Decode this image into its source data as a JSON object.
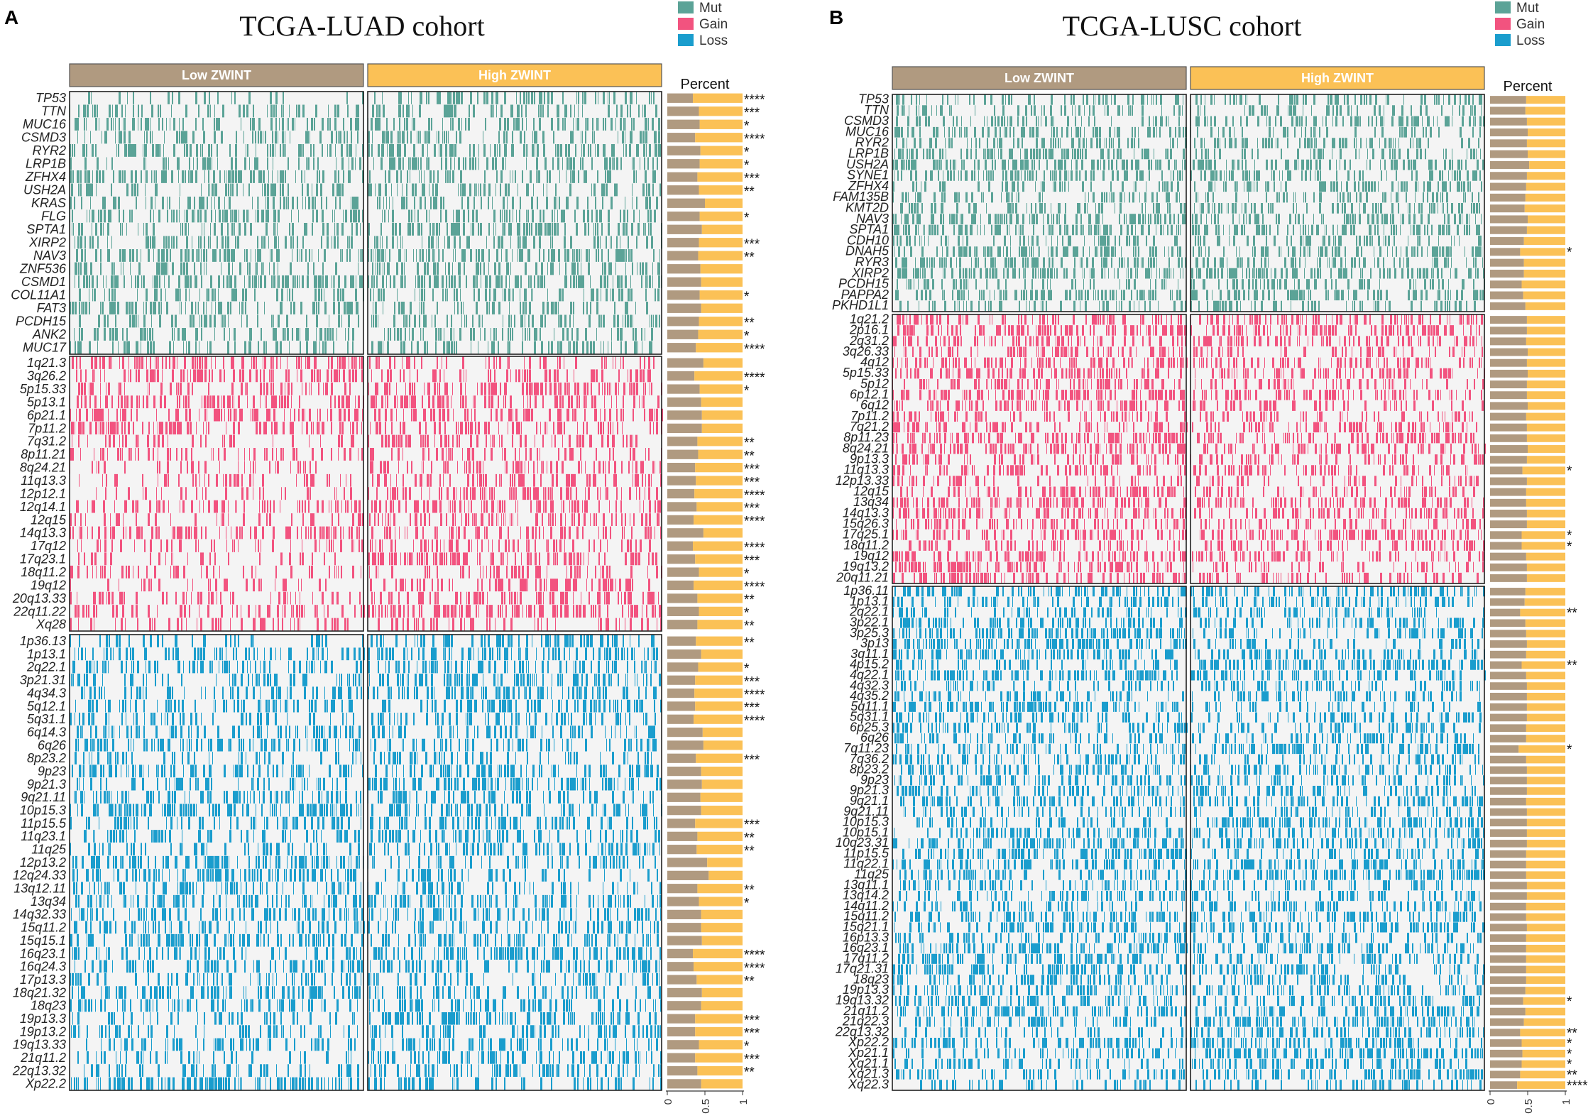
{
  "colors": {
    "mut": "#5ba397",
    "gain": "#f2537f",
    "loss": "#1a9dcd",
    "low": "#b09a80",
    "high": "#fbc156",
    "bg": "#f4f4f4"
  },
  "legend": {
    "items": [
      {
        "key": "mut",
        "label": "Mut"
      },
      {
        "key": "gain",
        "label": "Gain"
      },
      {
        "key": "loss",
        "label": "Loss"
      }
    ]
  },
  "axis": {
    "title": "Percent",
    "ticks": [
      "0",
      "0.5",
      "1"
    ]
  },
  "groups": {
    "low": "Low ZWINT",
    "high": "High ZWINT"
  },
  "chart_data": [
    {
      "type": "heatmap",
      "panel_label": "A",
      "title": "TCGA-LUAD cohort",
      "x_groups": [
        "Low ZWINT",
        "High ZWINT"
      ],
      "percent_axis": {
        "label": "Percent",
        "range": [
          0,
          1
        ]
      },
      "blocks": [
        {
          "type": "mut",
          "rows": [
            "TP53",
            "TTN",
            "MUC16",
            "CSMD3",
            "RYR2",
            "LRP1B",
            "ZFHX4",
            "USH2A",
            "KRAS",
            "FLG",
            "SPTA1",
            "XIRP2",
            "NAV3",
            "ZNF536",
            "CSMD1",
            "COL11A1",
            "FAT3",
            "PCDH15",
            "ANK2",
            "MUC17"
          ],
          "sig": [
            "****",
            "***",
            "*",
            "****",
            "*",
            "*",
            "***",
            "**",
            "",
            "*",
            "",
            "***",
            "**",
            "",
            "",
            "*",
            "",
            "**",
            "*",
            "****"
          ],
          "low_fraction": [
            0.34,
            0.42,
            0.43,
            0.37,
            0.44,
            0.43,
            0.4,
            0.42,
            0.5,
            0.43,
            0.46,
            0.42,
            0.41,
            0.44,
            0.45,
            0.43,
            0.45,
            0.42,
            0.41,
            0.38
          ]
        },
        {
          "type": "gain",
          "rows": [
            "1q21.3",
            "3q26.2",
            "5p15.33",
            "5p13.1",
            "6p21.1",
            "7p11.2",
            "7q31.2",
            "8p11.21",
            "8q24.21",
            "11q13.3",
            "12p12.1",
            "12q14.1",
            "12q15",
            "14q13.3",
            "17q12",
            "17q23.1",
            "18q11.2",
            "19q12",
            "20q13.33",
            "22q11.22",
            "Xq28"
          ],
          "sig": [
            "",
            "****",
            "*",
            "",
            "",
            "",
            "**",
            "**",
            "***",
            "***",
            "****",
            "***",
            "****",
            "",
            "****",
            "***",
            "*",
            "****",
            "**",
            "*",
            "**"
          ],
          "low_fraction": [
            0.48,
            0.36,
            0.43,
            0.45,
            0.46,
            0.46,
            0.4,
            0.41,
            0.37,
            0.38,
            0.36,
            0.39,
            0.35,
            0.48,
            0.34,
            0.37,
            0.42,
            0.35,
            0.4,
            0.42,
            0.4
          ]
        },
        {
          "type": "loss",
          "rows": [
            "1p36.13",
            "1p13.1",
            "2q22.1",
            "3p21.31",
            "4q34.3",
            "5q12.1",
            "5q31.1",
            "6q14.3",
            "6q26",
            "8p23.2",
            "9p23",
            "9p21.3",
            "9q21.11",
            "10p15.3",
            "11p15.5",
            "11q23.1",
            "11q25",
            "12p13.2",
            "12q24.33",
            "13q12.11",
            "13q34",
            "14q32.33",
            "15q11.2",
            "15q15.1",
            "16q23.1",
            "16q24.3",
            "17p13.3",
            "18q21.32",
            "18q23",
            "19p13.3",
            "19p13.2",
            "19q13.33",
            "21q11.2",
            "22q13.32",
            "Xp22.2"
          ],
          "sig": [
            "**",
            "",
            "*",
            "***",
            "****",
            "***",
            "****",
            "",
            "",
            "***",
            "",
            "",
            "",
            "",
            "***",
            "**",
            "**",
            "",
            "",
            "**",
            "*",
            "",
            "",
            "",
            "****",
            "****",
            "**",
            "",
            "",
            "***",
            "***",
            "*",
            "***",
            "**",
            ""
          ],
          "low_fraction": [
            0.38,
            0.45,
            0.41,
            0.37,
            0.36,
            0.37,
            0.35,
            0.47,
            0.48,
            0.38,
            0.45,
            0.46,
            0.44,
            0.45,
            0.37,
            0.4,
            0.39,
            0.53,
            0.55,
            0.4,
            0.42,
            0.45,
            0.45,
            0.46,
            0.34,
            0.35,
            0.39,
            0.46,
            0.45,
            0.37,
            0.37,
            0.42,
            0.37,
            0.4,
            0.45
          ]
        }
      ]
    },
    {
      "type": "heatmap",
      "panel_label": "B",
      "title": "TCGA-LUSC cohort",
      "x_groups": [
        "Low ZWINT",
        "High ZWINT"
      ],
      "percent_axis": {
        "label": "Percent",
        "range": [
          0,
          1
        ]
      },
      "blocks": [
        {
          "type": "mut",
          "rows": [
            "TP53",
            "TTN",
            "CSMD3",
            "MUC16",
            "RYR2",
            "LRP1B",
            "USH2A",
            "SYNE1",
            "ZFHX4",
            "FAM135B",
            "KMT2D",
            "NAV3",
            "SPTA1",
            "CDH10",
            "DNAH5",
            "RYR3",
            "XIRP2",
            "PCDH15",
            "PAPPA2",
            "PKHD1L1"
          ],
          "sig": [
            "",
            "",
            "",
            "",
            "",
            "",
            "",
            "",
            "",
            "",
            "",
            "",
            "",
            "",
            "*",
            "",
            "",
            "",
            "",
            ""
          ],
          "low_fraction": [
            0.48,
            0.47,
            0.49,
            0.5,
            0.49,
            0.5,
            0.52,
            0.49,
            0.48,
            0.47,
            0.46,
            0.5,
            0.49,
            0.45,
            0.4,
            0.45,
            0.45,
            0.42,
            0.44,
            0.47
          ]
        },
        {
          "type": "gain",
          "rows": [
            "1q21.2",
            "2p16.1",
            "2q31.2",
            "3q26.33",
            "4q12",
            "5p15.33",
            "5p12",
            "6p12.1",
            "6q12",
            "7p11.2",
            "7q21.2",
            "8p11.23",
            "8q24.21",
            "9p13.3",
            "11q13.3",
            "12p13.33",
            "12q15",
            "13q34",
            "14q13.3",
            "15q26.3",
            "17q25.1",
            "18q11.2",
            "19q12",
            "19q13.2",
            "20q11.21"
          ],
          "sig": [
            "",
            "",
            "",
            "",
            "",
            "",
            "",
            "",
            "",
            "",
            "",
            "",
            "",
            "",
            "*",
            "",
            "",
            "",
            "",
            "",
            "*",
            "*",
            "",
            "",
            ""
          ],
          "low_fraction": [
            0.49,
            0.49,
            0.48,
            0.5,
            0.49,
            0.5,
            0.49,
            0.49,
            0.5,
            0.48,
            0.49,
            0.49,
            0.5,
            0.49,
            0.43,
            0.49,
            0.48,
            0.48,
            0.49,
            0.49,
            0.42,
            0.42,
            0.48,
            0.49,
            0.49
          ]
        },
        {
          "type": "loss",
          "rows": [
            "1p36.11",
            "1p13.1",
            "2q22.1",
            "3p22.1",
            "3p25.3",
            "3p13",
            "3q11.1",
            "4p15.2",
            "4q22.1",
            "4q32.3",
            "4q35.2",
            "5q11.1",
            "5q31.1",
            "6p25.3",
            "6q26",
            "7q11.23",
            "7q36.2",
            "8p23.2",
            "9p23",
            "9p21.3",
            "9q21.1",
            "9q21.11",
            "10p15.3",
            "10p15.1",
            "10q23.31",
            "11p15.5",
            "11q22.1",
            "11q25",
            "13q11.1",
            "13q14.2",
            "14q11.2",
            "15q11.2",
            "15q21.1",
            "16p13.3",
            "16q23.1",
            "17q11.2",
            "17q21.31",
            "18q23",
            "19p13.3",
            "19q13.32",
            "21q11.2",
            "21q22.3",
            "22q13.32",
            "Xp22.2",
            "Xp21.1",
            "Xq21.1",
            "Xq21.3",
            "Xq22.3"
          ],
          "sig": [
            "",
            "",
            "**",
            "",
            "",
            "",
            "",
            "**",
            "",
            "",
            "",
            "",
            "",
            "",
            "",
            "*",
            "",
            "",
            "",
            "",
            "",
            "",
            "",
            "",
            "",
            "",
            "",
            "",
            "",
            "",
            "",
            "",
            "",
            "",
            "",
            "",
            "",
            "",
            "",
            "*",
            "",
            "",
            "**",
            "*",
            "*",
            "*",
            "**",
            "****"
          ],
          "low_fraction": [
            0.47,
            0.46,
            0.4,
            0.47,
            0.48,
            0.49,
            0.48,
            0.42,
            0.48,
            0.49,
            0.49,
            0.49,
            0.49,
            0.48,
            0.48,
            0.38,
            0.48,
            0.49,
            0.49,
            0.49,
            0.48,
            0.49,
            0.49,
            0.49,
            0.49,
            0.48,
            0.48,
            0.48,
            0.49,
            0.49,
            0.48,
            0.48,
            0.49,
            0.48,
            0.48,
            0.48,
            0.48,
            0.48,
            0.47,
            0.44,
            0.47,
            0.45,
            0.4,
            0.42,
            0.43,
            0.42,
            0.4,
            0.36
          ]
        }
      ]
    }
  ]
}
